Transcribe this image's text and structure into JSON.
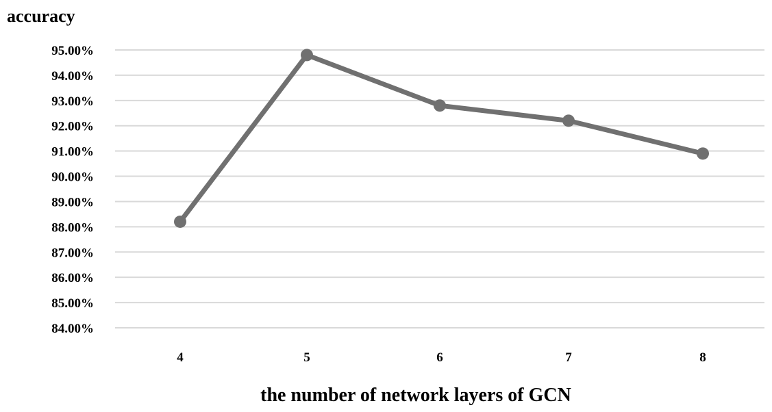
{
  "chart_data": {
    "type": "line",
    "title": "",
    "ylabel": "accuracy",
    "xlabel": "the number of network layers of GCN",
    "categories": [
      "4",
      "5",
      "6",
      "7",
      "8"
    ],
    "series": [
      {
        "values": [
          88.2,
          94.8,
          92.8,
          92.2,
          90.9
        ]
      }
    ],
    "ylim": [
      84,
      95
    ],
    "yticks": [
      "84.00%",
      "85.00%",
      "86.00%",
      "87.00%",
      "88.00%",
      "89.00%",
      "90.00%",
      "91.00%",
      "92.00%",
      "93.00%",
      "94.00%",
      "95.00%"
    ],
    "ytick_values": [
      84,
      85,
      86,
      87,
      88,
      89,
      90,
      91,
      92,
      93,
      94,
      95
    ],
    "grid": true,
    "legend": "none",
    "line_color": "#707070",
    "grid_color": "#d9d9d9"
  }
}
